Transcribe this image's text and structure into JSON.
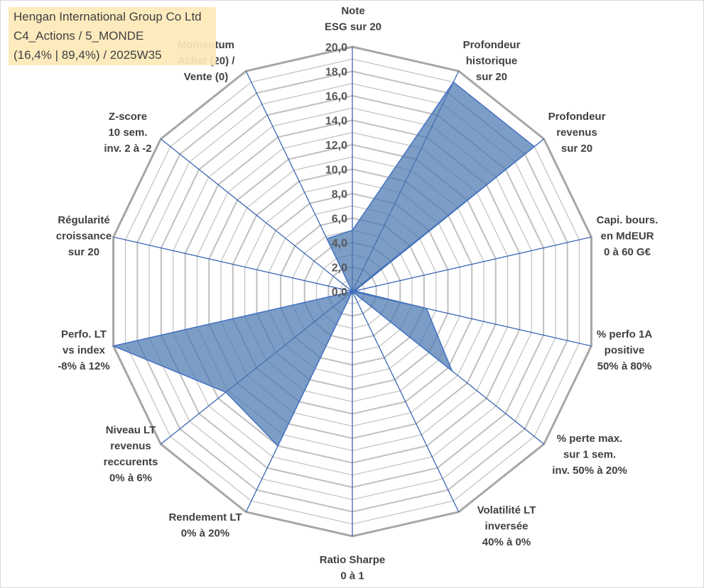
{
  "title_box": {
    "line1": "Hengan International Group Co Ltd",
    "line2": "C4_Actions / 5_MONDE",
    "line3": "(16,4% | 89,4%) / 2025W35"
  },
  "chart_data": {
    "type": "radar",
    "title": "Hengan International Group Co Ltd",
    "axes": [
      "Note\nESG sur 20",
      "Profondeur\nhistorique\nsur 20",
      "Profondeur\nrevenus\nsur 20",
      "Capi. bours.\nen MdEUR\n0 à 60 G€",
      "% perfo 1A\npositive\n50% à 80%",
      "% perte max.\nsur 1 sem.\ninv. 50% à 20%",
      "Volatilité LT\ninversée\n40% à 0%",
      "Ratio Sharpe\n0 à 1",
      "Rendement LT\n0% à 20%",
      "Niveau LT\nrevenus\nreccurents\n0% à 6%",
      "Perfo. LT\nvs index\n-8% à 12%",
      "Régularité\ncroissance\nsur 20",
      "Z-score\n10 sem.\ninv. 2 à -2",
      "Momentum\nAchat (20) /\nVente (0)"
    ],
    "values": [
      5.0,
      19.0,
      19.0,
      0.2,
      6.2,
      10.4,
      0.0,
      0.0,
      14.0,
      13.2,
      20.0,
      0.0,
      0.0,
      4.8
    ],
    "range": [
      0,
      20
    ],
    "tick_labels": [
      "0,0",
      "2,0",
      "4,0",
      "6,0",
      "8,0",
      "10,0",
      "12,0",
      "14,0",
      "16,0",
      "18,0",
      "20,0"
    ],
    "grid": true,
    "colors": {
      "fill": "#4a77ae",
      "line": "#4472c4",
      "grid": "#bfbfbf",
      "outer": "#a6a6a6",
      "spoke": "#2f5cae"
    }
  }
}
